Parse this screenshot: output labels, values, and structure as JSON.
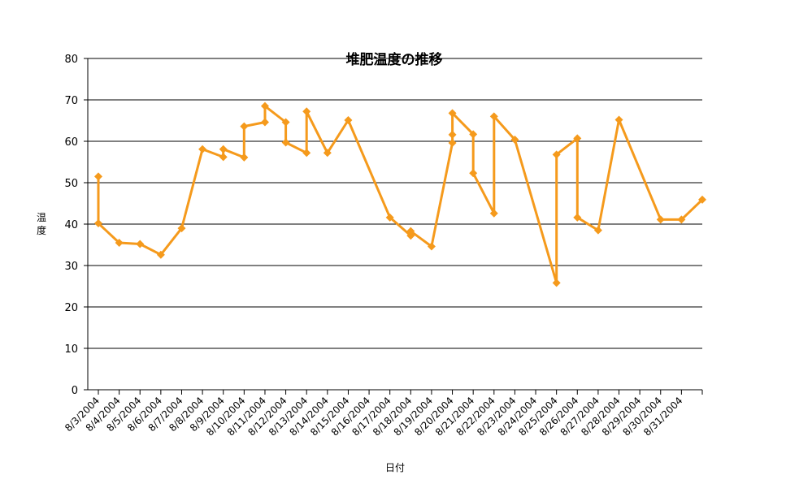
{
  "chart_data": {
    "type": "line",
    "title": "堆肥温度の推移",
    "xlabel": "日付",
    "ylabel": "温度",
    "ylim": [
      0,
      80
    ],
    "yticks": [
      0,
      10,
      20,
      30,
      40,
      50,
      60,
      70,
      80
    ],
    "grid": "horizontal",
    "categories": [
      "8/3/2004",
      "8/4/2004",
      "8/5/2004",
      "8/6/2004",
      "8/7/2004",
      "8/8/2004",
      "8/9/2004",
      "8/10/2004",
      "8/11/2004",
      "8/12/2004",
      "8/13/2004",
      "8/14/2004",
      "8/15/2004",
      "8/16/2004",
      "8/17/2004",
      "8/18/2004",
      "8/19/2004",
      "8/20/2004",
      "8/21/2004",
      "8/22/2004",
      "8/23/2004",
      "8/24/2004",
      "8/25/2004",
      "8/26/2004",
      "8/27/2004",
      "8/28/2004",
      "8/29/2004",
      "8/30/2004",
      "8/31/2004"
    ],
    "colors": {
      "series": "#F59A1C",
      "grid": "#000000"
    },
    "series": [
      {
        "points": [
          [
            "8/3/2004",
            51.5
          ],
          [
            "8/3/2004",
            40.2
          ],
          [
            "8/4/2004",
            35.5
          ],
          [
            "8/5/2004",
            35.2
          ],
          [
            "8/6/2004",
            32.6
          ],
          [
            "8/7/2004",
            39.0
          ],
          [
            "8/8/2004",
            58.1
          ],
          [
            "8/9/2004",
            56.2
          ],
          [
            "8/9/2004",
            58.1
          ],
          [
            "8/10/2004",
            56.1
          ],
          [
            "8/10/2004",
            63.6
          ],
          [
            "8/11/2004",
            64.6
          ],
          [
            "8/11/2004",
            68.5
          ],
          [
            "8/12/2004",
            64.6
          ],
          [
            "8/12/2004",
            59.7
          ],
          [
            "8/13/2004",
            57.2
          ],
          [
            "8/13/2004",
            67.2
          ],
          [
            "8/14/2004",
            57.2
          ],
          [
            "8/15/2004",
            65.1
          ],
          [
            "8/17/2004",
            41.6
          ],
          [
            "8/18/2004",
            37.2
          ],
          [
            "8/18/2004",
            38.3
          ],
          [
            "8/19/2004",
            34.6
          ],
          [
            "8/20/2004",
            59.6
          ],
          [
            "8/20/2004",
            61.6
          ],
          [
            "8/20/2004",
            66.8
          ],
          [
            "8/21/2004",
            61.7
          ],
          [
            "8/21/2004",
            52.3
          ],
          [
            "8/22/2004",
            42.6
          ],
          [
            "8/22/2004",
            66.0
          ],
          [
            "8/23/2004",
            60.4
          ],
          [
            "8/25/2004",
            25.8
          ],
          [
            "8/25/2004",
            56.8
          ],
          [
            "8/26/2004",
            60.7
          ],
          [
            "8/26/2004",
            41.6
          ],
          [
            "8/27/2004",
            38.5
          ],
          [
            "8/28/2004",
            65.2
          ],
          [
            "8/30/2004",
            41.1
          ],
          [
            "8/31/2004",
            41.1
          ],
          [
            "9/1/2004",
            45.9
          ]
        ]
      }
    ]
  }
}
